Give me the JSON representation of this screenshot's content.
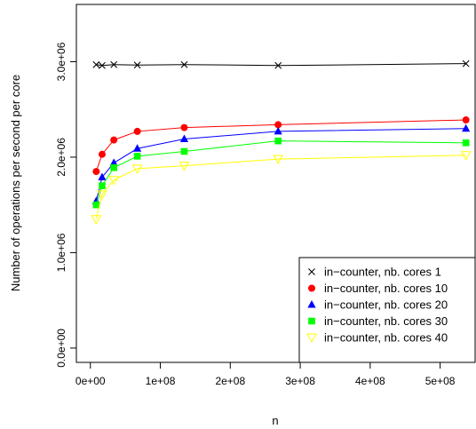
{
  "chart_data": {
    "type": "line",
    "title": "",
    "xlabel": "n",
    "ylabel": "Number of operations per second per core",
    "xlim": [
      -20000000,
      550000000
    ],
    "ylim": [
      -150000,
      3600000
    ],
    "x_ticks": [
      0,
      100000000,
      200000000,
      300000000,
      400000000,
      500000000
    ],
    "x_tick_labels": [
      "0e+00",
      "1e+08",
      "2e+08",
      "3e+08",
      "4e+08",
      "5e+08"
    ],
    "y_ticks": [
      0,
      1000000,
      2000000,
      3000000
    ],
    "y_tick_labels": [
      "0.0e+00",
      "1.0e+06",
      "2.0e+06",
      "3.0e+06"
    ],
    "grid": false,
    "legend_position": "bottom-right",
    "x": [
      8388608,
      16777216,
      33554432,
      67108864,
      134217728,
      268435456,
      536870912
    ],
    "series": [
      {
        "name": "in−counter, nb. cores 1",
        "marker": "cross",
        "color": "#000000",
        "values": [
          2970000,
          2960000,
          2970000,
          2965000,
          2970000,
          2960000,
          2980000
        ]
      },
      {
        "name": "in−counter, nb. cores 10",
        "marker": "circle",
        "color": "#ff0000",
        "values": [
          1850000,
          2030000,
          2180000,
          2270000,
          2310000,
          2340000,
          2390000
        ]
      },
      {
        "name": "in−counter, nb. cores 20",
        "marker": "triangle",
        "color": "#0000ff",
        "values": [
          1540000,
          1790000,
          1940000,
          2090000,
          2190000,
          2270000,
          2300000
        ]
      },
      {
        "name": "in−counter, nb. cores 30",
        "marker": "square",
        "color": "#00ff00",
        "values": [
          1500000,
          1700000,
          1890000,
          2010000,
          2060000,
          2170000,
          2150000
        ]
      },
      {
        "name": "in−counter, nb. cores 40",
        "marker": "triangle-down",
        "color": "#ffff00",
        "values": [
          1350000,
          1610000,
          1760000,
          1880000,
          1910000,
          1980000,
          2020000
        ]
      }
    ]
  }
}
